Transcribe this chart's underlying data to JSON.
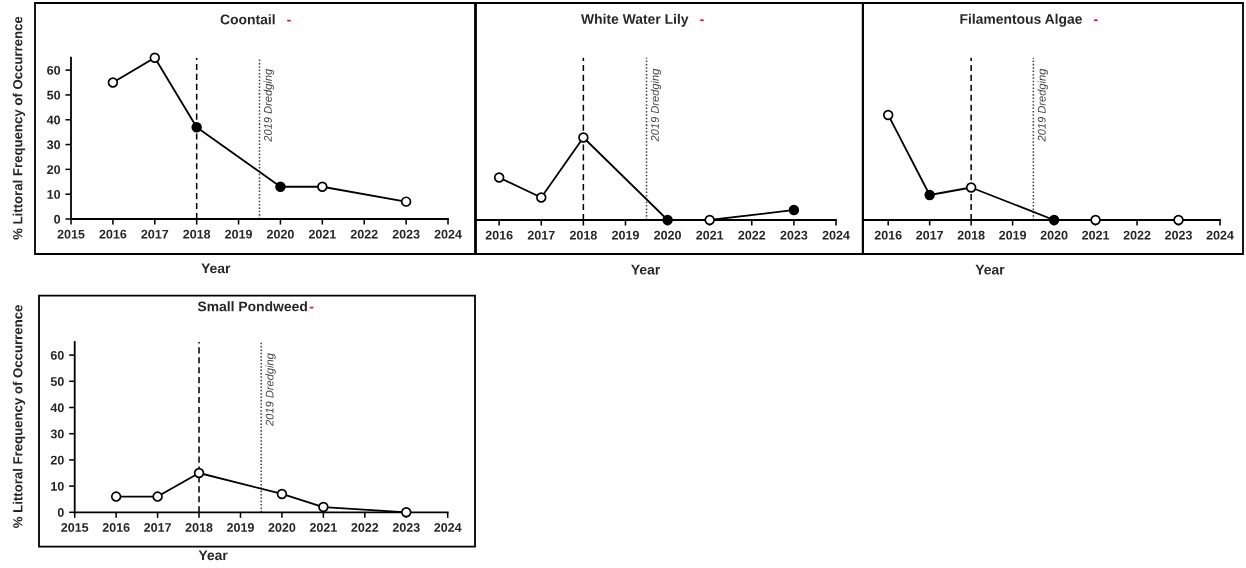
{
  "chart_data": [
    {
      "type": "line",
      "title": "Coontail",
      "annotations": [
        "-"
      ],
      "xlabel": "Year",
      "ylabel": "% Littoral Frequency of Occurrence",
      "x": [
        2016,
        2017,
        2018,
        2020,
        2021,
        2023
      ],
      "series": [
        {
          "color": "#000000",
          "colors": [
            "#ffffff",
            "#ffffff",
            "#000000",
            "#000000",
            "#ffffff",
            "#ffffff"
          ],
          "values": [
            55,
            65,
            37,
            13,
            13,
            7
          ]
        }
      ],
      "xlim": [
        2015,
        2024
      ],
      "xticks": [
        2015,
        2016,
        2017,
        2018,
        2019,
        2020,
        2021,
        2022,
        2023,
        2024
      ],
      "ylim": [
        0,
        65
      ],
      "yticks": [
        0,
        10,
        20,
        30,
        40,
        50,
        60
      ],
      "marker": "circle",
      "line_style": "solid",
      "ref_lines": [
        {
          "axis": "x",
          "value": 2018,
          "line_style": "dashed",
          "color": "#000000"
        },
        {
          "axis": "x",
          "value": 2019.5,
          "label": "2019 Dredging",
          "line_style": "dotted",
          "color": "#404040"
        }
      ]
    },
    {
      "type": "line",
      "title": "White Water Lily",
      "annotations": [
        "-"
      ],
      "xlabel": "Year",
      "x": [
        2016,
        2017,
        2018,
        2020,
        2021,
        2023
      ],
      "series": [
        {
          "color": "#000000",
          "colors": [
            "#ffffff",
            "#ffffff",
            "#ffffff",
            "#000000",
            "#ffffff",
            "#000000"
          ],
          "values": [
            17,
            9,
            33,
            0,
            0,
            4
          ]
        }
      ],
      "xlim": [
        2015.45,
        2024
      ],
      "xticks": [
        2016,
        2017,
        2018,
        2019,
        2020,
        2021,
        2022,
        2023,
        2024
      ],
      "ylim": [
        0,
        65
      ],
      "tick_labels": "x",
      "marker": "circle",
      "line_style": "solid",
      "ref_lines": [
        {
          "axis": "x",
          "value": 2018,
          "line_style": "dashed",
          "color": "#000000"
        },
        {
          "axis": "x",
          "value": 2019.5,
          "label": "2019 Dredging",
          "line_style": "dotted",
          "color": "#404040"
        }
      ]
    },
    {
      "type": "line",
      "title": "Filamentous Algae",
      "annotations": [
        "-"
      ],
      "xlabel": "Year",
      "x": [
        2016,
        2017,
        2018,
        2020,
        2021,
        2023
      ],
      "series": [
        {
          "color": "#000000",
          "colors": [
            "#ffffff",
            "#000000",
            "#ffffff",
            "#000000",
            "#ffffff",
            "#ffffff"
          ],
          "values": [
            42,
            10,
            13,
            0,
            0,
            0
          ]
        }
      ],
      "xlim": [
        2015.4,
        2024
      ],
      "xticks": [
        2016,
        2017,
        2018,
        2019,
        2020,
        2021,
        2022,
        2023,
        2024
      ],
      "ylim": [
        0,
        65
      ],
      "tick_labels": "x",
      "marker": "circle",
      "line_style": "solid",
      "ref_lines": [
        {
          "axis": "x",
          "value": 2018,
          "line_style": "dashed",
          "color": "#000000"
        },
        {
          "axis": "x",
          "value": 2019.5,
          "label": "2019 Dredging",
          "line_style": "dotted",
          "color": "#404040"
        }
      ]
    },
    {
      "type": "line",
      "title": "Small Pondweed",
      "annotations": [
        "-"
      ],
      "xlabel": "Year",
      "ylabel": "% Littoral Frequency of Occurrence",
      "x": [
        2016,
        2017,
        2018,
        2020,
        2021,
        2023
      ],
      "series": [
        {
          "color": "#000000",
          "colors": [
            "#ffffff",
            "#ffffff",
            "#ffffff",
            "#ffffff",
            "#ffffff",
            "#ffffff"
          ],
          "values": [
            6,
            6,
            15,
            7,
            2,
            0
          ]
        }
      ],
      "xlim": [
        2015,
        2024
      ],
      "xticks": [
        2015,
        2016,
        2017,
        2018,
        2019,
        2020,
        2021,
        2022,
        2023,
        2024
      ],
      "ylim": [
        0,
        65
      ],
      "yticks": [
        0,
        10,
        20,
        30,
        40,
        50,
        60
      ],
      "marker": "circle",
      "line_style": "solid",
      "ref_lines": [
        {
          "axis": "x",
          "value": 2018,
          "line_style": "dashed",
          "color": "#000000"
        },
        {
          "axis": "x",
          "value": 2019.5,
          "label": "2019 Dredging",
          "line_style": "dotted",
          "color": "#404040"
        }
      ]
    }
  ]
}
